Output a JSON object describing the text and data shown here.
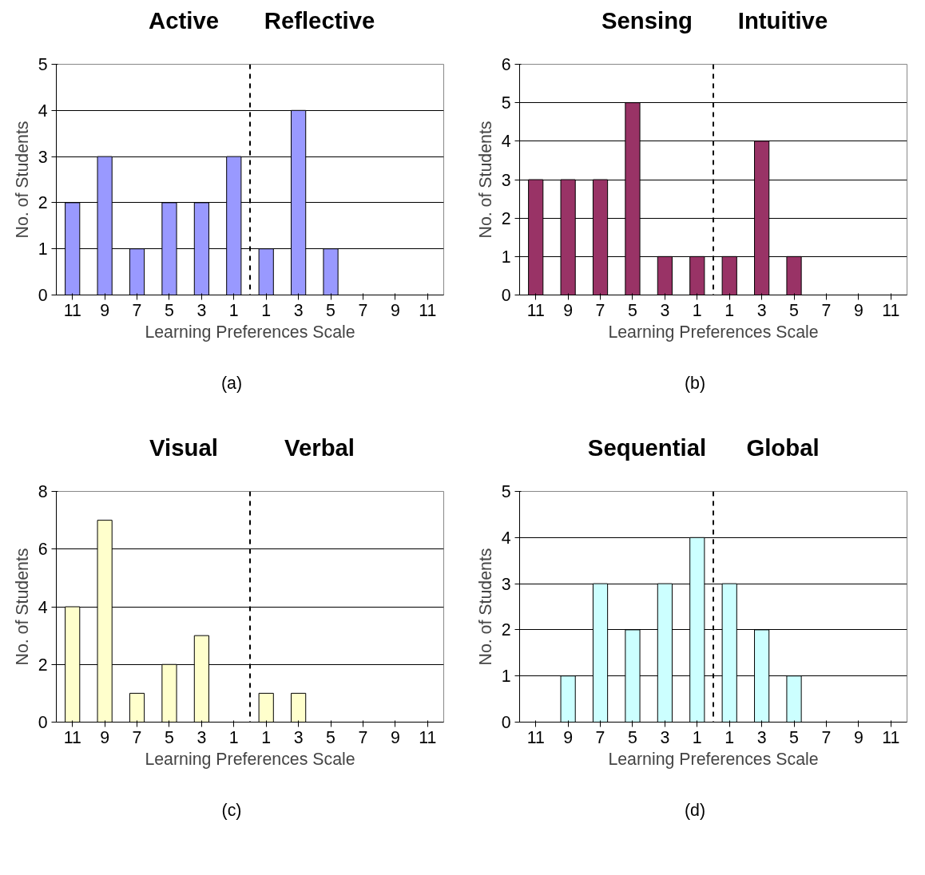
{
  "chart_data": [
    {
      "type": "bar",
      "annotations": [
        "Active",
        "Reflective",
        "(a)"
      ],
      "xlabel": "Learning Preferences Scale",
      "ylabel": "No. of Students",
      "x": [
        -11,
        -9,
        -7,
        -5,
        -3,
        -1,
        1,
        3,
        5,
        7,
        9,
        11
      ],
      "xlim": [
        -12,
        12
      ],
      "xticks": [
        {
          "value": -11,
          "label": "11"
        },
        {
          "value": -9,
          "label": "9"
        },
        {
          "value": -7,
          "label": "7"
        },
        {
          "value": -5,
          "label": "5"
        },
        {
          "value": -3,
          "label": "3"
        },
        {
          "value": -1,
          "label": "1"
        },
        1,
        3,
        5,
        7,
        9,
        11
      ],
      "ylim": [
        0,
        5
      ],
      "yticks": [
        0,
        1,
        2,
        3,
        4,
        5
      ],
      "grid": "y",
      "series": [
        {
          "color": "#9999ff",
          "values": [
            2,
            3,
            1,
            2,
            2,
            3,
            1,
            4,
            1,
            0,
            0,
            0
          ]
        }
      ],
      "ref_lines": [
        {
          "axis": "x",
          "value": 0,
          "line_style": "dashed"
        }
      ]
    },
    {
      "type": "bar",
      "annotations": [
        "Sensing",
        "Intuitive",
        "(b)"
      ],
      "xlabel": "Learning Preferences Scale",
      "ylabel": "No. of Students",
      "x": [
        -11,
        -9,
        -7,
        -5,
        -3,
        -1,
        1,
        3,
        5,
        7,
        9,
        11
      ],
      "xlim": [
        -12,
        12
      ],
      "xticks": [
        {
          "value": -11,
          "label": "11"
        },
        {
          "value": -9,
          "label": "9"
        },
        {
          "value": -7,
          "label": "7"
        },
        {
          "value": -5,
          "label": "5"
        },
        {
          "value": -3,
          "label": "3"
        },
        {
          "value": -1,
          "label": "1"
        },
        1,
        3,
        5,
        7,
        9,
        11
      ],
      "ylim": [
        0,
        6
      ],
      "yticks": [
        0,
        1,
        2,
        3,
        4,
        5,
        6
      ],
      "grid": "y",
      "series": [
        {
          "color": "#993366",
          "values": [
            3,
            3,
            3,
            5,
            1,
            1,
            1,
            4,
            1,
            0,
            0,
            0
          ]
        }
      ],
      "ref_lines": [
        {
          "axis": "x",
          "value": 0,
          "line_style": "dashed"
        }
      ]
    },
    {
      "type": "bar",
      "annotations": [
        "Visual",
        "Verbal",
        "(c)"
      ],
      "xlabel": "Learning Preferences Scale",
      "ylabel": "No. of Students",
      "x": [
        -11,
        -9,
        -7,
        -5,
        -3,
        -1,
        1,
        3,
        5,
        7,
        9,
        11
      ],
      "xlim": [
        -12,
        12
      ],
      "xticks": [
        {
          "value": -11,
          "label": "11"
        },
        {
          "value": -9,
          "label": "9"
        },
        {
          "value": -7,
          "label": "7"
        },
        {
          "value": -5,
          "label": "5"
        },
        {
          "value": -3,
          "label": "3"
        },
        {
          "value": -1,
          "label": "1"
        },
        1,
        3,
        5,
        7,
        9,
        11
      ],
      "ylim": [
        0,
        8
      ],
      "yticks": [
        0,
        2,
        4,
        6,
        8
      ],
      "grid": "y",
      "series": [
        {
          "color": "#ffffcc",
          "values": [
            4,
            7,
            1,
            2,
            3,
            0,
            1,
            1,
            0,
            0,
            0,
            0
          ]
        }
      ],
      "ref_lines": [
        {
          "axis": "x",
          "value": 0,
          "line_style": "dashed"
        }
      ]
    },
    {
      "type": "bar",
      "annotations": [
        "Sequential",
        "Global",
        "(d)"
      ],
      "xlabel": "Learning Preferences Scale",
      "ylabel": "No. of Students",
      "x": [
        -11,
        -9,
        -7,
        -5,
        -3,
        -1,
        1,
        3,
        5,
        7,
        9,
        11
      ],
      "xlim": [
        -12,
        12
      ],
      "xticks": [
        {
          "value": -11,
          "label": "11"
        },
        {
          "value": -9,
          "label": "9"
        },
        {
          "value": -7,
          "label": "7"
        },
        {
          "value": -5,
          "label": "5"
        },
        {
          "value": -3,
          "label": "3"
        },
        {
          "value": -1,
          "label": "1"
        },
        1,
        3,
        5,
        7,
        9,
        11
      ],
      "ylim": [
        0,
        5
      ],
      "yticks": [
        0,
        1,
        2,
        3,
        4,
        5
      ],
      "grid": "y",
      "series": [
        {
          "color": "#ccffff",
          "values": [
            0,
            1,
            3,
            2,
            3,
            4,
            3,
            2,
            1,
            0,
            0,
            0
          ]
        }
      ],
      "ref_lines": [
        {
          "axis": "x",
          "value": 0,
          "line_style": "dashed"
        }
      ]
    }
  ]
}
